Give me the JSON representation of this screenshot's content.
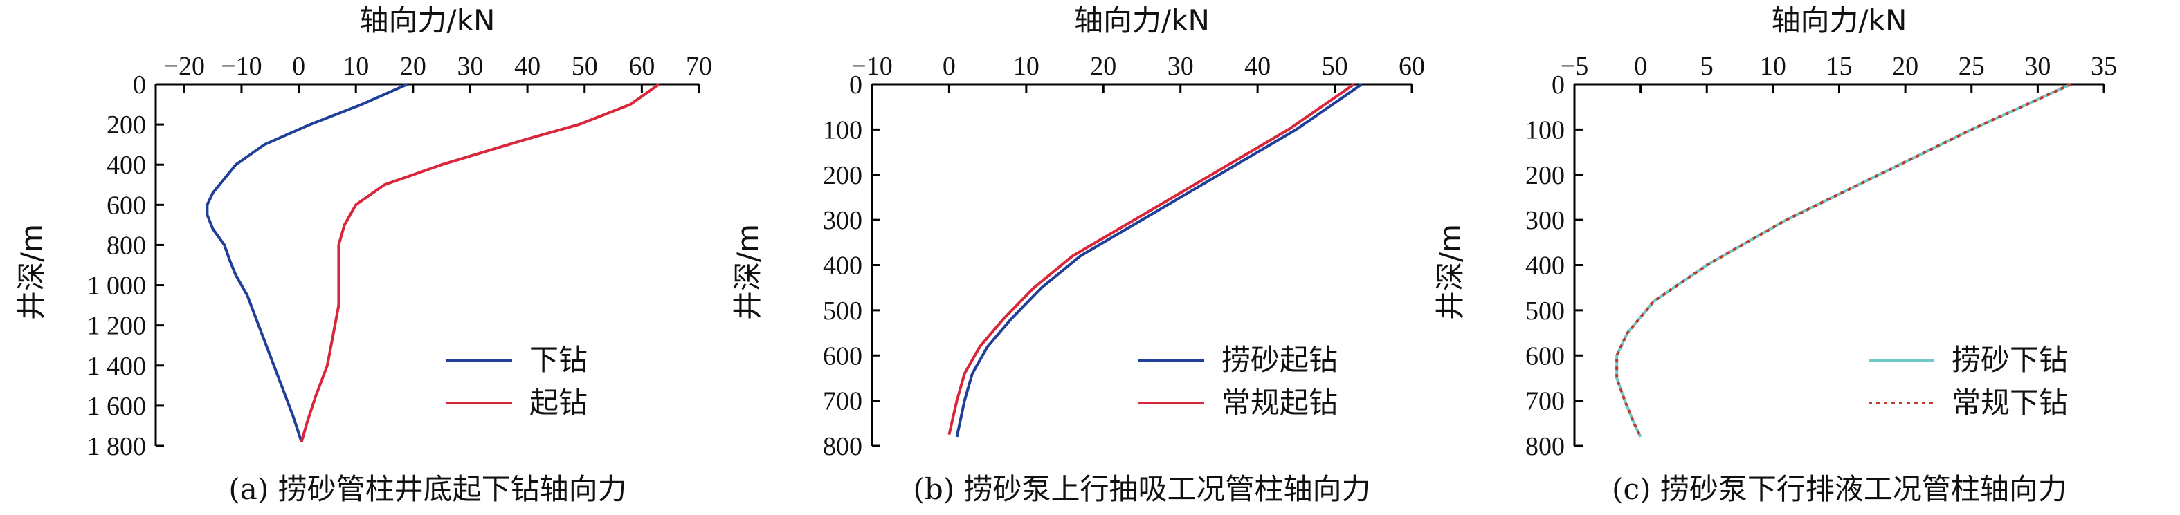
{
  "chart_data": [
    {
      "type": "line",
      "caption": "(a) 捞砂管柱井底起下钻轴向力",
      "xlabel": "轴向力/kN",
      "ylabel": "井深/m",
      "xlim": [
        -25,
        70
      ],
      "ylim": [
        0,
        1800
      ],
      "y_inverted": true,
      "x_axis_position": "top",
      "xticks": [
        -20,
        -10,
        0,
        10,
        20,
        30,
        40,
        50,
        60,
        70
      ],
      "xtick_labels": [
        "−20",
        "−10",
        "0",
        "10",
        "20",
        "30",
        "40",
        "50",
        "60",
        "70"
      ],
      "yticks": [
        0,
        200,
        400,
        600,
        800,
        1000,
        1200,
        1400,
        1600,
        1800
      ],
      "ytick_labels": [
        "0",
        "200",
        "400",
        "600",
        "800",
        "1 000",
        "1 200",
        "1 400",
        "1 600",
        "1 800"
      ],
      "legend_position": "bottom-right",
      "series": [
        {
          "name": "下钻",
          "color": "#1f3f99",
          "dash": "solid",
          "x": [
            19,
            11,
            2,
            -6,
            -11,
            -13,
            -15,
            -16,
            -16,
            -15,
            -13,
            -12,
            -11,
            -9,
            -7,
            -5,
            -3,
            -1,
            0.5
          ],
          "y": [
            0,
            100,
            200,
            300,
            400,
            470,
            540,
            600,
            650,
            720,
            800,
            880,
            950,
            1050,
            1200,
            1350,
            1500,
            1650,
            1780
          ]
        },
        {
          "name": "起钻",
          "color": "#d9263b",
          "dash": "solid",
          "x": [
            63,
            58,
            49,
            39,
            25,
            15,
            10,
            8,
            7,
            7,
            7,
            6,
            5,
            3,
            1.5,
            0.5
          ],
          "y": [
            0,
            100,
            200,
            280,
            400,
            500,
            600,
            700,
            800,
            950,
            1100,
            1250,
            1400,
            1550,
            1680,
            1780
          ]
        }
      ]
    },
    {
      "type": "line",
      "caption": "(b) 捞砂泵上行抽吸工况管柱轴向力",
      "xlabel": "轴向力/kN",
      "ylabel": "井深/m",
      "xlim": [
        -10,
        60
      ],
      "ylim": [
        0,
        800
      ],
      "y_inverted": true,
      "x_axis_position": "top",
      "xticks": [
        -10,
        0,
        10,
        20,
        30,
        40,
        50,
        60
      ],
      "xtick_labels": [
        "−10",
        "0",
        "10",
        "20",
        "30",
        "40",
        "50",
        "60"
      ],
      "yticks": [
        0,
        100,
        200,
        300,
        400,
        500,
        600,
        700,
        800
      ],
      "ytick_labels": [
        "0",
        "100",
        "200",
        "300",
        "400",
        "500",
        "600",
        "700",
        "800"
      ],
      "legend_position": "bottom-right",
      "series": [
        {
          "name": "捞砂起钻",
          "color": "#1f3f99",
          "dash": "solid",
          "x": [
            53.5,
            45,
            35,
            25,
            17,
            12,
            8,
            5,
            3,
            2,
            1
          ],
          "y": [
            0,
            100,
            200,
            300,
            380,
            450,
            520,
            580,
            640,
            700,
            780
          ]
        },
        {
          "name": "常规起钻",
          "color": "#d9263b",
          "dash": "solid",
          "x": [
            52.5,
            44,
            34,
            24,
            16,
            11,
            7,
            4,
            2,
            1,
            0
          ],
          "y": [
            0,
            100,
            200,
            300,
            380,
            450,
            520,
            580,
            640,
            700,
            775
          ]
        }
      ]
    },
    {
      "type": "line",
      "caption": "(c) 捞砂泵下行排液工况管柱轴向力",
      "xlabel": "轴向力/kN",
      "ylabel": "井深/m",
      "xlim": [
        -5,
        35
      ],
      "ylim": [
        0,
        800
      ],
      "y_inverted": true,
      "x_axis_position": "top",
      "xticks": [
        -5,
        0,
        5,
        10,
        15,
        20,
        25,
        30,
        35
      ],
      "xtick_labels": [
        "−5",
        "0",
        "5",
        "10",
        "15",
        "20",
        "25",
        "30",
        "35"
      ],
      "yticks": [
        0,
        100,
        200,
        300,
        400,
        500,
        600,
        700,
        800
      ],
      "ytick_labels": [
        "0",
        "100",
        "200",
        "300",
        "400",
        "500",
        "600",
        "700",
        "800"
      ],
      "legend_position": "bottom-right",
      "series": [
        {
          "name": "捞砂下钻",
          "color": "#6fc9c9",
          "dash": "solid",
          "x": [
            32.5,
            25,
            18,
            11,
            5,
            1,
            -1,
            -1.8,
            -1.8,
            -1.2,
            -0.5,
            0
          ],
          "y": [
            0,
            100,
            200,
            300,
            400,
            480,
            550,
            600,
            650,
            700,
            750,
            780
          ]
        },
        {
          "name": "常规下钻",
          "color": "#c0392b",
          "dash": "dotted",
          "x": [
            32.5,
            25,
            18,
            11,
            5,
            1,
            -1,
            -1.8,
            -1.8,
            -1.2,
            -0.5,
            0
          ],
          "y": [
            0,
            100,
            200,
            300,
            400,
            480,
            550,
            600,
            650,
            700,
            750,
            780
          ]
        }
      ]
    }
  ]
}
